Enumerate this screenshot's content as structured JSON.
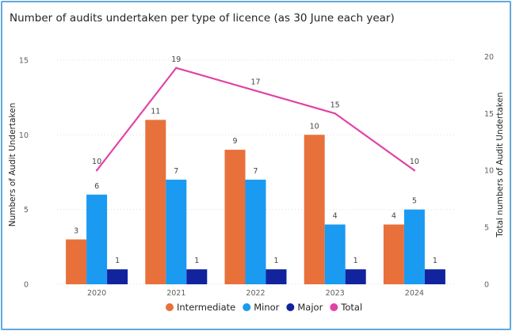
{
  "chart_data": {
    "type": "bar",
    "title": "Number of audits undertaken per type of licence (as 30 June each year)",
    "categories": [
      "2020",
      "2021",
      "2022",
      "2023",
      "2024"
    ],
    "series": [
      {
        "name": "Intermediate",
        "type": "bar",
        "axis": "left",
        "color": "#e8703a",
        "values": [
          3,
          11,
          9,
          10,
          4
        ]
      },
      {
        "name": "Minor",
        "type": "bar",
        "axis": "left",
        "color": "#1a9af0",
        "values": [
          6,
          7,
          7,
          4,
          5
        ]
      },
      {
        "name": "Major",
        "type": "bar",
        "axis": "left",
        "color": "#12239e",
        "values": [
          1,
          1,
          1,
          1,
          1
        ]
      },
      {
        "name": "Total",
        "type": "line",
        "axis": "right",
        "color": "#e044a7",
        "values": [
          10,
          19,
          17,
          15,
          10
        ]
      }
    ],
    "ylabel": "Numbers of Audit Undertaken",
    "ylim": [
      0,
      16
    ],
    "yticks": [
      0,
      5,
      10,
      15
    ],
    "y2label": "Total numbers of Audit Undertaken",
    "y2lim": [
      0,
      21
    ],
    "y2ticks": [
      0,
      5,
      10,
      15,
      20
    ],
    "grid": true,
    "legend_position": "bottom"
  }
}
